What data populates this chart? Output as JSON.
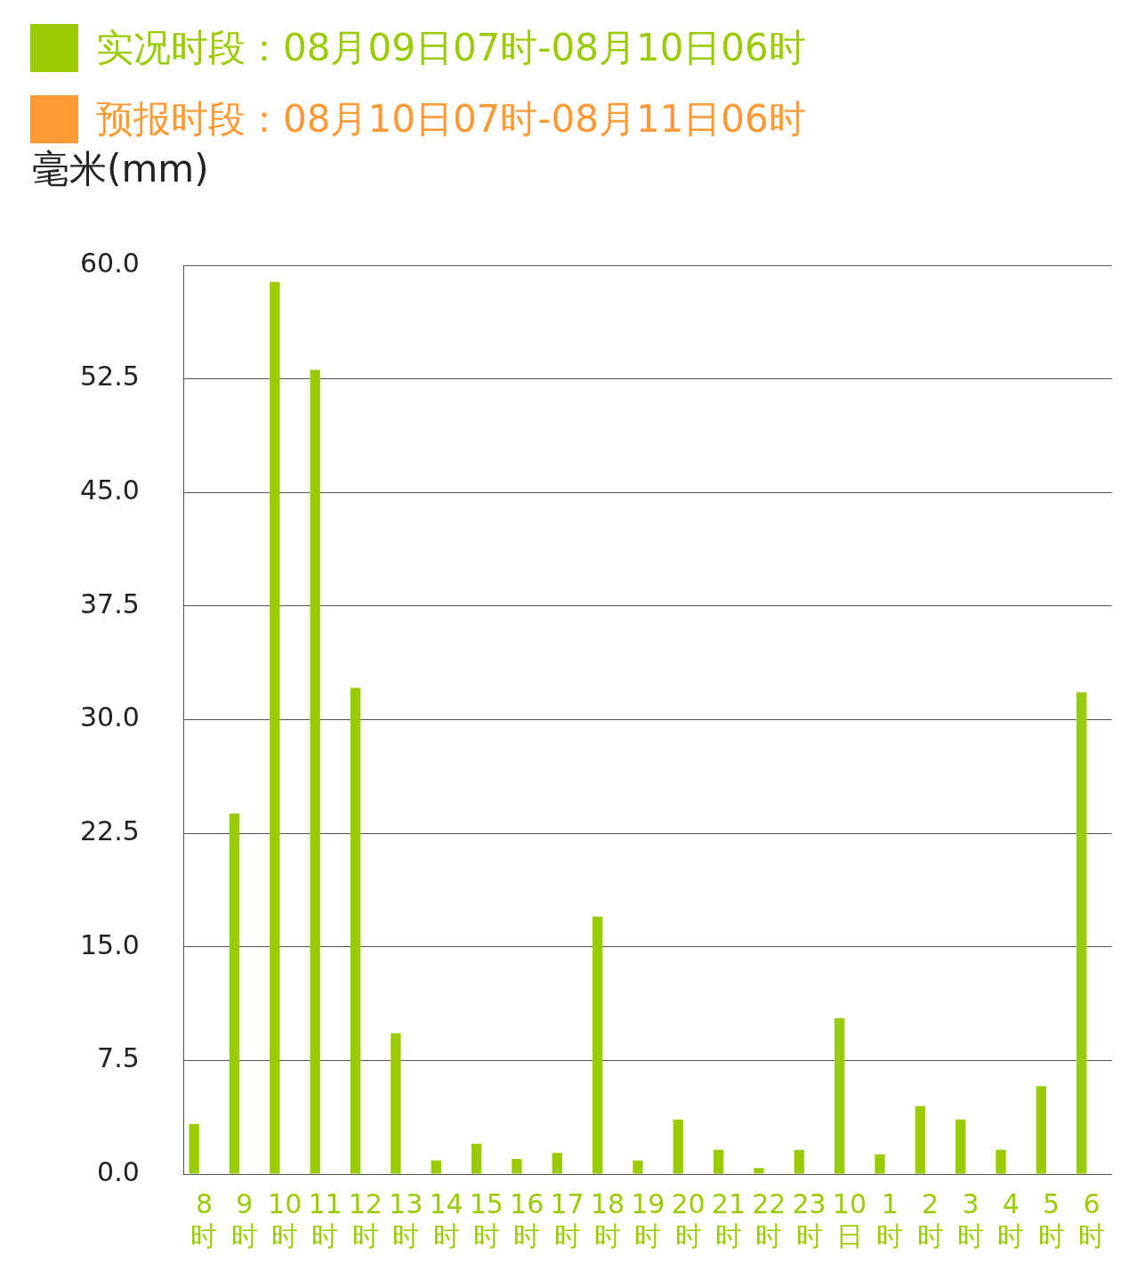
{
  "chart_data": {
    "type": "bar",
    "ylabel": "毫米(mm)",
    "categories": [
      "8时",
      "9时",
      "10时",
      "11时",
      "12时",
      "13时",
      "14时",
      "15时",
      "16时",
      "17时",
      "18时",
      "19时",
      "20时",
      "21时",
      "22时",
      "23时",
      "10日",
      "1时",
      "2时",
      "3时",
      "4时",
      "5时",
      "6时"
    ],
    "series": [
      {
        "name": "实况时段：08月09日07时-08月10日06时",
        "color": "#99cc00",
        "values": [
          3.3,
          23.8,
          58.9,
          53.1,
          32.1,
          9.3,
          0.9,
          2.0,
          1.0,
          1.4,
          17.0,
          0.9,
          3.6,
          1.6,
          0.4,
          1.6,
          10.3,
          1.3,
          4.5,
          3.6,
          1.6,
          5.8,
          31.8
        ]
      },
      {
        "name": "预报时段：08月10日07时-08月11日06时",
        "color": "#ff9933",
        "values": [
          null,
          null,
          null,
          null,
          null,
          null,
          null,
          null,
          null,
          null,
          null,
          null,
          null,
          null,
          null,
          null,
          null,
          null,
          null,
          null,
          null,
          null,
          null
        ]
      }
    ],
    "ylim": [
      0,
      60
    ],
    "yticks": [
      {
        "value": 0,
        "label": "0.0"
      },
      {
        "value": 7.5,
        "label": "7.5"
      },
      {
        "value": 15,
        "label": "15.0"
      },
      {
        "value": 22.5,
        "label": "22.5"
      },
      {
        "value": 30,
        "label": "30.0"
      },
      {
        "value": 37.5,
        "label": "37.5"
      },
      {
        "value": 45,
        "label": "45.0"
      },
      {
        "value": 52.5,
        "label": "52.5"
      },
      {
        "value": 60,
        "label": "60.0"
      }
    ],
    "grid": "y",
    "legend": "top left"
  }
}
